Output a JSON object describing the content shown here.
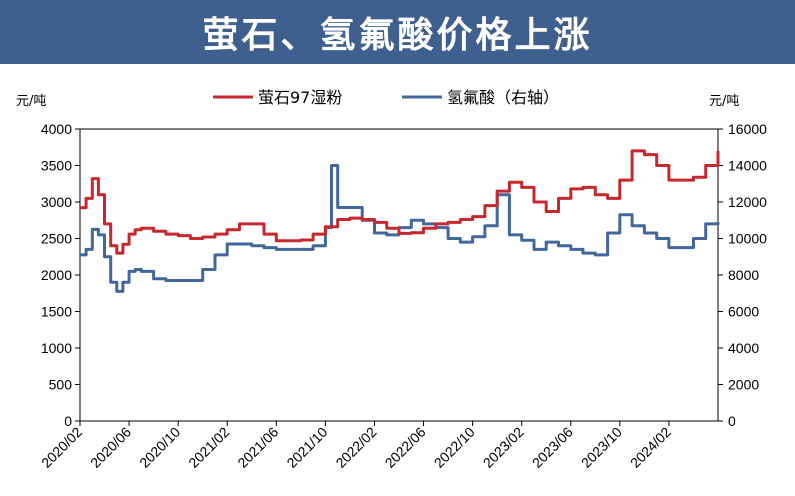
{
  "header": {
    "title": "萤石、氢氟酸价格上涨"
  },
  "colors": {
    "header_bg": "#3f5f8f",
    "fluorite": "#c8282d",
    "hf": "#41679b"
  },
  "chart_data": {
    "type": "line",
    "left_unit": "元/吨",
    "right_unit": "元/吨",
    "legend_position": "top",
    "ylim_left": [
      0,
      4000
    ],
    "ylim_right": [
      0,
      16000
    ],
    "yticks_left": [
      "4000",
      "3500",
      "3000",
      "2500",
      "2000",
      "1500",
      "1000",
      "500",
      "0"
    ],
    "yticks_right": [
      "16000",
      "14000",
      "12000",
      "10000",
      "8000",
      "6000",
      "4000",
      "2000",
      "0"
    ],
    "x_range": [
      "2020-02",
      "2024-06"
    ],
    "xticks": [
      "2020/02",
      "2020/06",
      "2020/10",
      "2021/02",
      "2021/06",
      "2021/10",
      "2022/02",
      "2022/06",
      "2022/10",
      "2023/02",
      "2023/06",
      "2023/10",
      "2024/02"
    ],
    "series": [
      {
        "name": "萤石97湿粉",
        "axis": "left",
        "color": "#c8282d",
        "x": [
          "2020-02",
          "2020-02.5",
          "2020-03",
          "2020-03.5",
          "2020-04",
          "2020-04.5",
          "2020-05",
          "2020-05.5",
          "2020-06",
          "2020-06.5",
          "2020-07",
          "2020-08",
          "2020-09",
          "2020-10",
          "2020-11",
          "2020-12",
          "2021-01",
          "2021-02",
          "2021-03",
          "2021-04",
          "2021-05",
          "2021-06",
          "2021-07",
          "2021-08",
          "2021-09",
          "2021-10",
          "2021-11",
          "2021-12",
          "2022-01",
          "2022-02",
          "2022-03",
          "2022-04",
          "2022-05",
          "2022-06",
          "2022-07",
          "2022-08",
          "2022-09",
          "2022-10",
          "2022-11",
          "2022-12",
          "2023-01",
          "2023-02",
          "2023-03",
          "2023-04",
          "2023-05",
          "2023-06",
          "2023-07",
          "2023-08",
          "2023-09",
          "2023-10",
          "2023-11",
          "2023-12",
          "2024-01",
          "2024-02",
          "2024-03",
          "2024-04",
          "2024-05",
          "2024-06"
        ],
        "values": [
          2920,
          3050,
          3320,
          3100,
          2700,
          2400,
          2300,
          2420,
          2560,
          2620,
          2640,
          2600,
          2560,
          2540,
          2500,
          2520,
          2560,
          2620,
          2700,
          2700,
          2560,
          2470,
          2470,
          2480,
          2560,
          2660,
          2760,
          2780,
          2760,
          2720,
          2640,
          2570,
          2580,
          2640,
          2700,
          2720,
          2760,
          2800,
          2950,
          3150,
          3270,
          3200,
          3000,
          2870,
          3050,
          3180,
          3200,
          3100,
          3050,
          3300,
          3700,
          3650,
          3500,
          3300,
          3300,
          3340,
          3500,
          3700
        ]
      },
      {
        "name": "氢氟酸（右轴）",
        "axis": "right",
        "color": "#41679b",
        "x": [
          "2020-02",
          "2020-02.5",
          "2020-03",
          "2020-03.5",
          "2020-04",
          "2020-04.5",
          "2020-05",
          "2020-05.5",
          "2020-06",
          "2020-06.5",
          "2020-07",
          "2020-08",
          "2020-09",
          "2020-10",
          "2020-11",
          "2020-12",
          "2021-01",
          "2021-02",
          "2021-03",
          "2021-04",
          "2021-05",
          "2021-06",
          "2021-07",
          "2021-08",
          "2021-09",
          "2021-10",
          "2021-10.5",
          "2021-11",
          "2021-12",
          "2022-01",
          "2022-02",
          "2022-03",
          "2022-04",
          "2022-05",
          "2022-06",
          "2022-07",
          "2022-08",
          "2022-09",
          "2022-10",
          "2022-11",
          "2022-12",
          "2022-12.5",
          "2023-01",
          "2023-02",
          "2023-03",
          "2023-04",
          "2023-05",
          "2023-06",
          "2023-07",
          "2023-08",
          "2023-09",
          "2023-10",
          "2023-11",
          "2023-12",
          "2024-01",
          "2024-02",
          "2024-03",
          "2024-04",
          "2024-05",
          "2024-06"
        ],
        "values": [
          9100,
          9400,
          10500,
          10200,
          9000,
          7600,
          7100,
          7600,
          8200,
          8300,
          8200,
          7800,
          7700,
          7700,
          7700,
          8300,
          9100,
          9700,
          9700,
          9600,
          9500,
          9400,
          9400,
          9400,
          9600,
          10600,
          14000,
          11700,
          11700,
          11000,
          10300,
          10200,
          10600,
          11000,
          10800,
          10600,
          10000,
          9800,
          10100,
          10700,
          12400,
          12400,
          10200,
          9900,
          9400,
          9800,
          9600,
          9400,
          9200,
          9100,
          10300,
          11300,
          10700,
          10300,
          10000,
          9500,
          9500,
          10000,
          10800,
          10900
        ]
      }
    ]
  }
}
